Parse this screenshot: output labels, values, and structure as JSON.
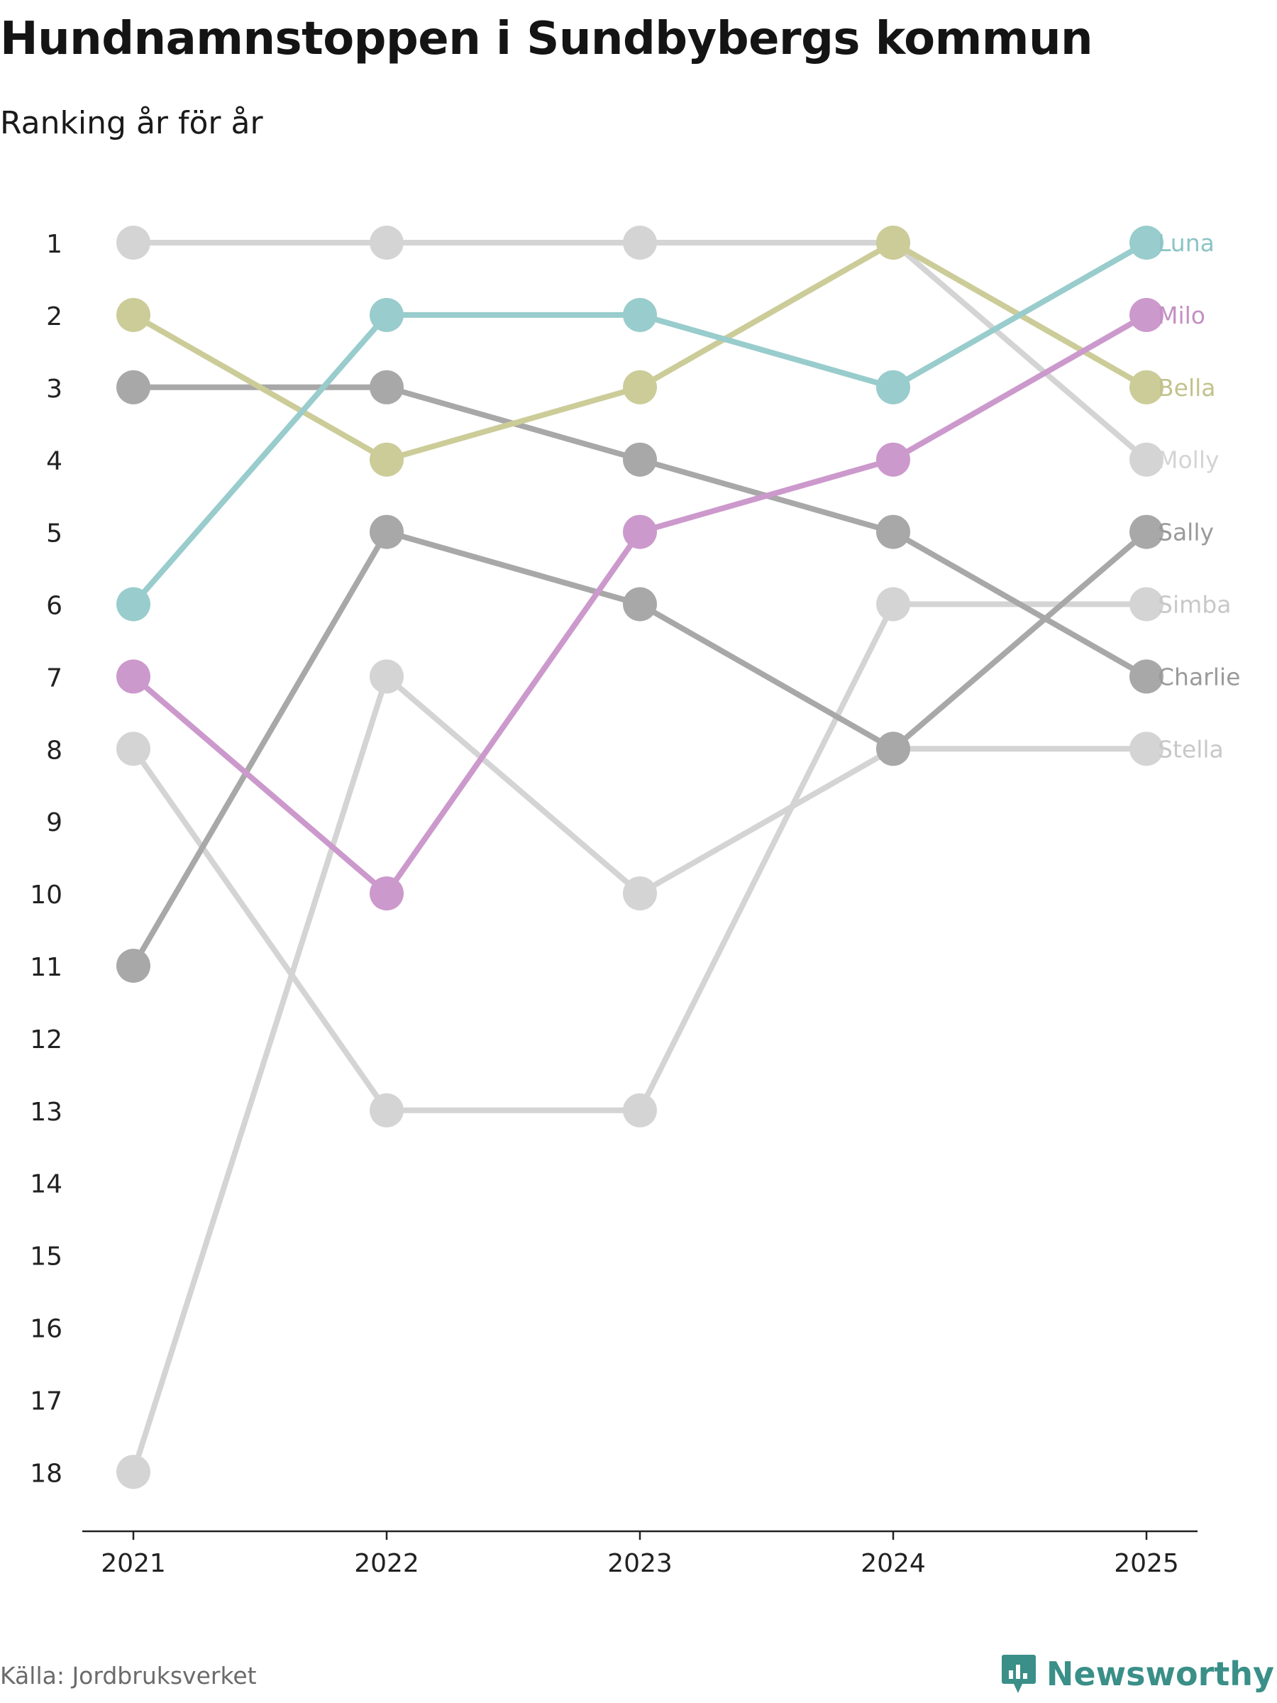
{
  "title": "Hundnamnstoppen i Sundbybergs kommun",
  "subtitle": "Ranking år för år",
  "source": "Källa: Jordbruksverket",
  "brand": "Newsworthy",
  "chart_data": {
    "type": "line",
    "chart_kind": "bump",
    "categories": [
      "2021",
      "2022",
      "2023",
      "2024",
      "2025"
    ],
    "yticks": [
      "1",
      "2",
      "3",
      "4",
      "5",
      "6",
      "7",
      "8",
      "9",
      "10",
      "11",
      "12",
      "13",
      "14",
      "15",
      "16",
      "17",
      "18"
    ],
    "ylim": [
      1,
      18
    ],
    "y_reversed": true,
    "series": [
      {
        "name": "Molly",
        "values": [
          1,
          1,
          1,
          1,
          4
        ],
        "color": "#d4d4d4",
        "label_color": "#d4d4d4"
      },
      {
        "name": "Simba",
        "values": [
          8,
          13,
          13,
          6,
          6
        ],
        "color": "#d4d4d4",
        "label_color": "#c8c8c8"
      },
      {
        "name": "Stella",
        "values": [
          18,
          7,
          10,
          8,
          8
        ],
        "color": "#d4d4d4",
        "label_color": "#c8c8c8"
      },
      {
        "name": "Charlie",
        "values": [
          3,
          3,
          4,
          5,
          7
        ],
        "color": "#a8a8a8",
        "label_color": "#9a9a9a"
      },
      {
        "name": "Sally",
        "values": [
          11,
          5,
          6,
          8,
          5
        ],
        "color": "#a8a8a8",
        "label_color": "#9a9a9a"
      },
      {
        "name": "Bella",
        "values": [
          2,
          4,
          3,
          1,
          3
        ],
        "color": "#cccc99",
        "label_color": "#c2c28c"
      },
      {
        "name": "Milo",
        "values": [
          7,
          10,
          5,
          4,
          2
        ],
        "color": "#cc99cc",
        "label_color": "#c48fc4"
      },
      {
        "name": "Luna",
        "values": [
          6,
          2,
          2,
          3,
          1
        ],
        "color": "#99cccc",
        "label_color": "#8cc4c4"
      }
    ]
  }
}
